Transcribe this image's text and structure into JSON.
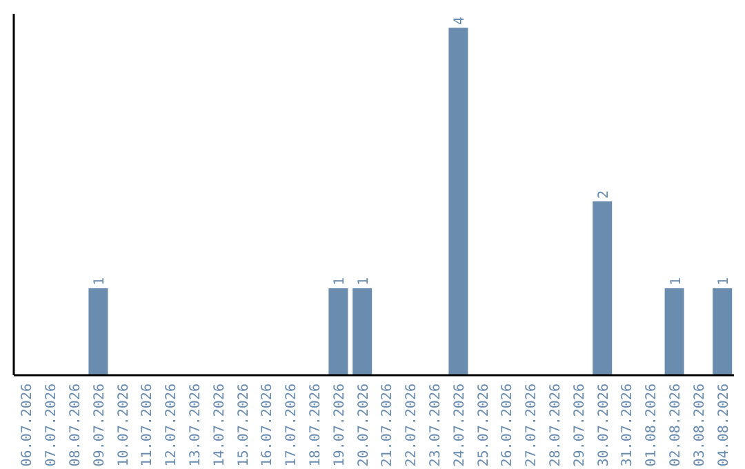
{
  "chart_data": {
    "type": "bar",
    "categories": [
      "06.07.2026",
      "07.07.2026",
      "08.07.2026",
      "09.07.2026",
      "10.07.2026",
      "11.07.2026",
      "12.07.2026",
      "13.07.2026",
      "14.07.2026",
      "15.07.2026",
      "16.07.2026",
      "17.07.2026",
      "18.07.2026",
      "19.07.2026",
      "20.07.2026",
      "21.07.2026",
      "22.07.2026",
      "23.07.2026",
      "24.07.2026",
      "25.07.2026",
      "26.07.2026",
      "27.07.2026",
      "28.07.2026",
      "29.07.2026",
      "30.07.2026",
      "31.07.2026",
      "01.08.2026",
      "02.08.2026",
      "03.08.2026",
      "04.08.2026"
    ],
    "values": [
      null,
      null,
      null,
      1,
      null,
      null,
      null,
      null,
      null,
      null,
      null,
      null,
      null,
      1,
      1,
      null,
      null,
      null,
      4,
      null,
      null,
      null,
      null,
      null,
      2,
      null,
      null,
      1,
      null,
      1
    ],
    "color": "#6a8caf",
    "data_labels": true
  }
}
